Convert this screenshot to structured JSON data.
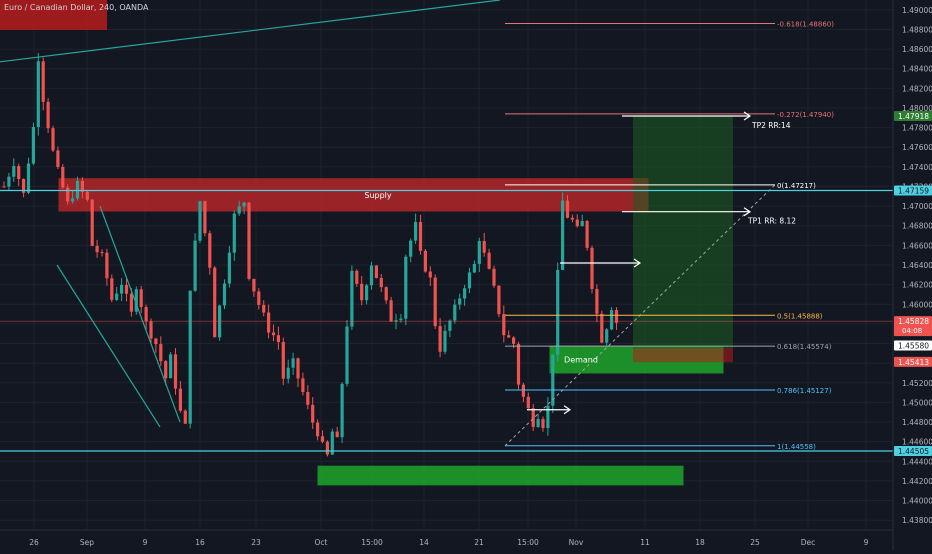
{
  "header": {
    "title": "Euro / Canadian Dollar, 240, OANDA"
  },
  "theme": {
    "background": "#131722",
    "bull": "#26a69a",
    "bear": "#ef5350",
    "grid": "#1e222d",
    "axis_text": "#b2b5be",
    "supply_zone": "#c62828",
    "demand_zone": "#1ea52a",
    "fib_line": "#a0a4ad",
    "tp_zone": "#1b5e20",
    "horizontal_level": "#4dd0e1"
  },
  "chart_data": {
    "type": "candlestick",
    "instrument": "Euro / Canadian Dollar",
    "timeframe": "240",
    "broker": "OANDA",
    "ylim": [
      1.437,
      1.491
    ],
    "y_ticks": [
      "1.49000",
      "1.48800",
      "1.48600",
      "1.48400",
      "1.48200",
      "1.48000",
      "1.47800",
      "1.47600",
      "1.47400",
      "1.47200",
      "1.47000",
      "1.46800",
      "1.46600",
      "1.46400",
      "1.46200",
      "1.46000",
      "1.45800",
      "1.45600",
      "1.45400",
      "1.45200",
      "1.45000",
      "1.44800",
      "1.44600",
      "1.44400",
      "1.44200",
      "1.44000",
      "1.43800"
    ],
    "x_ticks": [
      "26",
      "Sep",
      "9",
      "16",
      "23",
      "Oct",
      "15:00",
      "14",
      "21",
      "15:00",
      "Nov",
      "11",
      "18",
      "25",
      "Dec",
      "9"
    ],
    "price_path": [
      [
        0,
        1.472
      ],
      [
        2,
        1.4745
      ],
      [
        4,
        1.4712
      ],
      [
        6,
        1.478
      ],
      [
        7,
        1.4852
      ],
      [
        8,
        1.481
      ],
      [
        10,
        1.4755
      ],
      [
        11,
        1.4735
      ],
      [
        13,
        1.4702
      ],
      [
        15,
        1.4722
      ],
      [
        17,
        1.4705
      ],
      [
        18,
        1.466
      ],
      [
        20,
        1.4648
      ],
      [
        22,
        1.4605
      ],
      [
        24,
        1.4622
      ],
      [
        26,
        1.459
      ],
      [
        27,
        1.462
      ],
      [
        29,
        1.458
      ],
      [
        31,
        1.456
      ],
      [
        33,
        1.4525
      ],
      [
        34,
        1.4545
      ],
      [
        36,
        1.449
      ],
      [
        37,
        1.4475
      ],
      [
        38,
        1.4618
      ],
      [
        40,
        1.4705
      ],
      [
        42,
        1.464
      ],
      [
        43,
        1.457
      ],
      [
        45,
        1.4625
      ],
      [
        47,
        1.469
      ],
      [
        49,
        1.4705
      ],
      [
        50,
        1.463
      ],
      [
        52,
        1.46
      ],
      [
        54,
        1.4575
      ],
      [
        56,
        1.4562
      ],
      [
        57,
        1.4525
      ],
      [
        59,
        1.454
      ],
      [
        61,
        1.451
      ],
      [
        63,
        1.448
      ],
      [
        64,
        1.447
      ],
      [
        65,
        1.4455
      ],
      [
        66,
        1.4445
      ],
      [
        67,
        1.447
      ],
      [
        68,
        1.446
      ],
      [
        69,
        1.452
      ],
      [
        70,
        1.458
      ],
      [
        71,
        1.463
      ],
      [
        73,
        1.4605
      ],
      [
        75,
        1.4642
      ],
      [
        77,
        1.4615
      ],
      [
        79,
        1.4585
      ],
      [
        81,
        1.459
      ],
      [
        82,
        1.465
      ],
      [
        84,
        1.468
      ],
      [
        85,
        1.465
      ],
      [
        87,
        1.4625
      ],
      [
        88,
        1.458
      ],
      [
        89,
        1.4555
      ],
      [
        90,
        1.457
      ],
      [
        92,
        1.4595
      ],
      [
        94,
        1.462
      ],
      [
        96,
        1.464
      ],
      [
        97,
        1.4668
      ],
      [
        98,
        1.465
      ],
      [
        100,
        1.4615
      ],
      [
        102,
        1.457
      ],
      [
        104,
        1.456
      ],
      [
        105,
        1.452
      ],
      [
        106,
        1.4505
      ],
      [
        108,
        1.448
      ],
      [
        109,
        1.4488
      ],
      [
        110,
        1.4478
      ],
      [
        111,
        1.4495
      ],
      [
        112,
        1.4552
      ],
      [
        113,
        1.463
      ],
      [
        114,
        1.4705
      ],
      [
        115,
        1.469
      ],
      [
        116,
        1.4685
      ],
      [
        117,
        1.4675
      ],
      [
        118,
        1.4683
      ],
      [
        119,
        1.466
      ],
      [
        120,
        1.462
      ],
      [
        121,
        1.459
      ],
      [
        122,
        1.4565
      ],
      [
        123,
        1.4578
      ],
      [
        124,
        1.4598
      ],
      [
        125,
        1.4582
      ]
    ],
    "levels": [
      {
        "label": "1.47159",
        "price": 1.47159,
        "color": "#4dd0e1"
      },
      {
        "label": "1.44505",
        "price": 1.44505,
        "color": "#4dd0e1"
      }
    ],
    "fib_levels": [
      {
        "label": "-0.618(1.48860)",
        "price": 1.4886,
        "color": "#e57373"
      },
      {
        "label": "-0.272(1.47940)",
        "price": 1.4794,
        "color": "#e57373"
      },
      {
        "label": "0(1.47217)",
        "price": 1.47217,
        "color": "#ffffff"
      },
      {
        "label": "0.5(1.45888)",
        "price": 1.45888,
        "color": "#ffb74d"
      },
      {
        "label": "0.618(1.45574)",
        "price": 1.45574,
        "color": "#a0a4ad"
      },
      {
        "label": "0.786(1.45127)",
        "price": 1.45127,
        "color": "#4fc3f7"
      },
      {
        "label": "1(1.44558)",
        "price": 1.44558,
        "color": "#4fc3f7"
      }
    ],
    "price_badges": [
      {
        "label": "1.47918",
        "price": 1.47918,
        "bg": "#2e7d32"
      },
      {
        "label": "1.47159",
        "price": 1.47159,
        "bg": "#4dd0e1"
      },
      {
        "label": "1.45828",
        "price": 1.45828,
        "bg": "#ef5350",
        "sub": "04:08"
      },
      {
        "label": "1.45580",
        "price": 1.4558,
        "bg": "#ffffff"
      },
      {
        "label": "1.45413",
        "price": 1.45413,
        "bg": "#ef5350"
      },
      {
        "label": "1.44505",
        "price": 1.44505,
        "bg": "#4dd0e1"
      }
    ],
    "zones": [
      {
        "label": "Supply",
        "top": 1.4728,
        "bottom": 1.4695
      },
      {
        "label": "Demand",
        "top": 1.45574,
        "bottom": 1.453
      },
      {
        "label": "",
        "top": 1.4435,
        "bottom": 1.4416
      }
    ],
    "annotations": [
      {
        "label": "TP2 RR:14",
        "price": 1.47918
      },
      {
        "label": "TP1 RR: 8.12",
        "price": 1.46943
      }
    ]
  }
}
